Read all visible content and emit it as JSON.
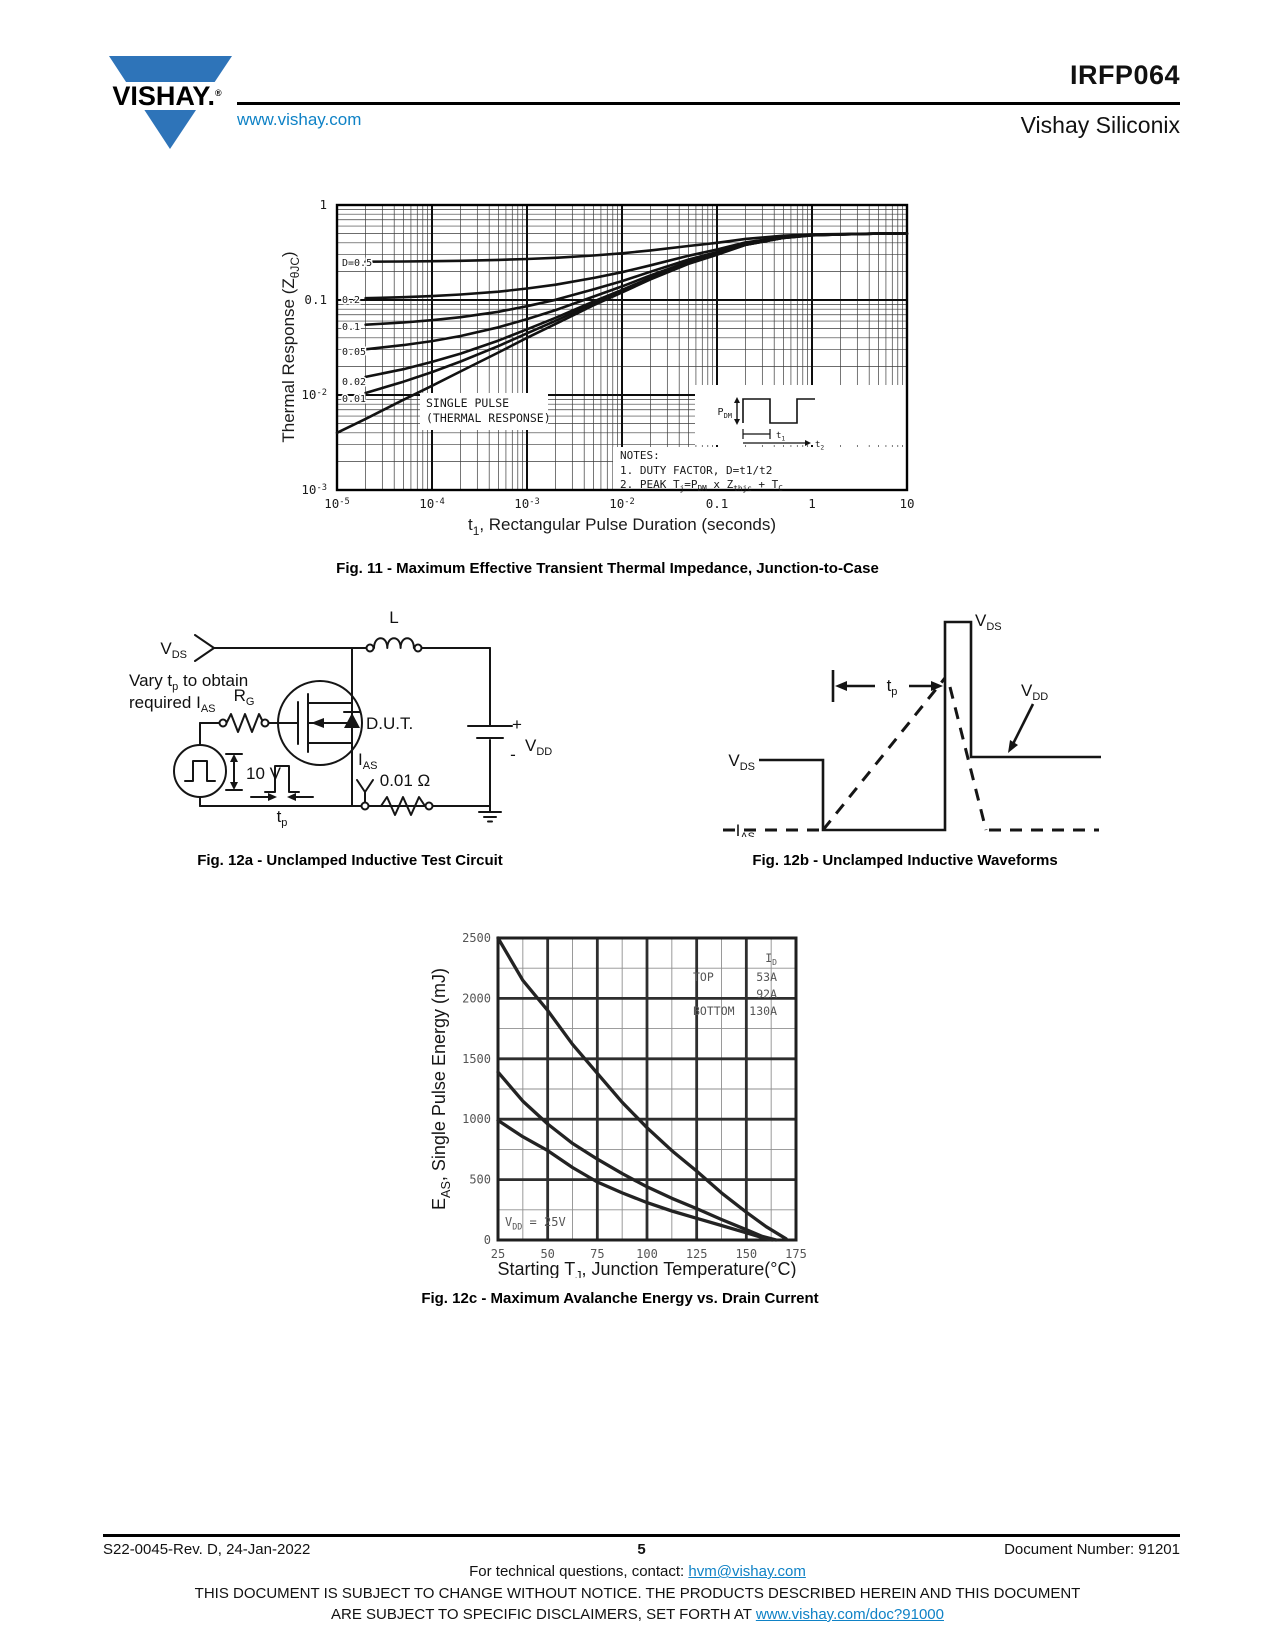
{
  "header": {
    "logo_text": "VISHAY.",
    "logo_reg": "®",
    "url": "www.vishay.com",
    "part_number": "IRFP064",
    "brand": "Vishay Siliconix",
    "logo_color": "#2e74b9",
    "link_color": "#0f82c6"
  },
  "fig11": {
    "caption": "Fig. 11 - Maximum Effective Transient Thermal Impedance, Junction-to-Case"
  },
  "fig12a": {
    "caption": "Fig. 12a - Unclamped Inductive Test Circuit",
    "note_line1": {
      "a": "Vary t",
      "b": "p",
      "c": " to obtain"
    },
    "note_line2": {
      "a": "required I",
      "b": "AS"
    },
    "labels": {
      "vds": {
        "m": "V",
        "s": "DS"
      },
      "l": "L",
      "rg": {
        "m": "R",
        "s": "G"
      },
      "dut": "D.U.T.",
      "v10": "10 V",
      "tp": {
        "m": "t",
        "s": "p"
      },
      "ias": {
        "m": "I",
        "s": "AS"
      },
      "res": "0.01 Ω",
      "plus": "+",
      "minus": "-",
      "vdd": {
        "m": "V",
        "s": "DD"
      }
    }
  },
  "fig12b": {
    "caption": "Fig. 12b - Unclamped Inductive Waveforms",
    "labels": {
      "vds_top": {
        "m": "V",
        "s": "DS"
      },
      "vds_left": {
        "m": "V",
        "s": "DS"
      },
      "vdd": {
        "m": "V",
        "s": "DD"
      },
      "tp": {
        "m": "t",
        "s": "p"
      },
      "ias": {
        "m": "I",
        "s": "AS"
      }
    }
  },
  "fig12c": {
    "caption": "Fig. 12c - Maximum Avalanche Energy vs. Drain Current"
  },
  "footer": {
    "rev": "S22-0045-Rev. D, 24-Jan-2022",
    "page": "5",
    "doc": "Document Number: 91201",
    "contact_prefix": "For technical questions, contact: ",
    "contact_link": "hvm@vishay.com",
    "disclaimer_line1": "THIS DOCUMENT IS SUBJECT TO CHANGE WITHOUT NOTICE. THE PRODUCTS DESCRIBED HEREIN AND THIS DOCUMENT",
    "disclaimer_line2_prefix": "ARE SUBJECT TO SPECIFIC DISCLAIMERS, SET FORTH AT ",
    "disclaimer_line2_link": "www.vishay.com/doc?91000"
  },
  "chart_data": [
    {
      "id": "fig11",
      "type": "line",
      "x_scale": "log",
      "y_scale": "log",
      "xlim": [
        1e-05,
        10
      ],
      "ylim": [
        0.001,
        1
      ],
      "grid": true,
      "xlabel_parts": [
        {
          "t": "t"
        },
        {
          "s": "1"
        },
        {
          "t": ", Rectangular Pulse Duration (seconds)"
        }
      ],
      "ylabel_parts": [
        {
          "t": "Thermal Response (Z"
        },
        {
          "s": "θJC"
        },
        {
          "t": ")"
        }
      ],
      "x_ticks": [
        {
          "v": 1e-05,
          "parts": [
            {
              "t": "10"
            },
            {
              "p": "-5"
            }
          ]
        },
        {
          "v": 0.0001,
          "parts": [
            {
              "t": "10"
            },
            {
              "p": "-4"
            }
          ]
        },
        {
          "v": 0.001,
          "parts": [
            {
              "t": "10"
            },
            {
              "p": "-3"
            }
          ]
        },
        {
          "v": 0.01,
          "parts": [
            {
              "t": "10"
            },
            {
              "p": "-2"
            }
          ]
        },
        {
          "v": 0.1,
          "parts": [
            {
              "t": "0.1"
            }
          ]
        },
        {
          "v": 1,
          "parts": [
            {
              "t": "1"
            }
          ]
        },
        {
          "v": 10,
          "parts": [
            {
              "t": "10"
            }
          ]
        }
      ],
      "y_ticks": [
        {
          "v": 1,
          "parts": [
            {
              "t": "1"
            }
          ]
        },
        {
          "v": 0.1,
          "parts": [
            {
              "t": "0.1"
            }
          ]
        },
        {
          "v": 0.01,
          "parts": [
            {
              "t": "10"
            },
            {
              "p": "-2"
            }
          ]
        },
        {
          "v": 0.001,
          "parts": [
            {
              "t": "10"
            },
            {
              "p": "-3"
            }
          ]
        }
      ],
      "single_pulse_box": [
        "SINGLE PULSE",
        "(THERMAL RESPONSE)"
      ],
      "notes": [
        [
          {
            "t": "NOTES:"
          }
        ],
        [
          {
            "t": "1. DUTY FACTOR, D=t1/t2"
          }
        ],
        [
          {
            "t": "2. PEAK T"
          },
          {
            "s": "j"
          },
          {
            "t": "=P"
          },
          {
            "s": "DM"
          },
          {
            "t": " x Z"
          },
          {
            "s": "thjc"
          },
          {
            "t": " + T"
          },
          {
            "s": "C"
          }
        ]
      ],
      "inset": {
        "pdm": [
          {
            "t": "P"
          },
          {
            "s": "DM"
          }
        ],
        "t1": [
          {
            "t": "t"
          },
          {
            "s": "1"
          }
        ],
        "t2": [
          {
            "t": "t"
          },
          {
            "s": "2"
          }
        ]
      },
      "series": [
        {
          "label": "D=0.5",
          "points": [
            [
              2e-05,
              0.2528
            ],
            [
              5e-05,
              0.2545
            ],
            [
              0.0001,
              0.2563
            ],
            [
              0.0002,
              0.2589
            ],
            [
              0.0005,
              0.264
            ],
            [
              0.001,
              0.27
            ],
            [
              0.002,
              0.278
            ],
            [
              0.005,
              0.294
            ],
            [
              0.01,
              0.31
            ],
            [
              0.02,
              0.3325
            ],
            [
              0.05,
              0.37
            ],
            [
              0.1,
              0.4
            ],
            [
              0.2,
              0.44
            ],
            [
              0.5,
              0.475
            ],
            [
              1,
              0.49
            ],
            [
              2,
              0.495
            ],
            [
              5,
              0.5
            ],
            [
              10,
              0.5
            ]
          ]
        },
        {
          "label": "0.2",
          "points": [
            [
              2e-05,
              0.1045
            ],
            [
              5e-05,
              0.1071
            ],
            [
              0.0001,
              0.11
            ],
            [
              0.0002,
              0.1142
            ],
            [
              0.0005,
              0.1224
            ],
            [
              0.001,
              0.132
            ],
            [
              0.002,
              0.1448
            ],
            [
              0.005,
              0.1704
            ],
            [
              0.01,
              0.196
            ],
            [
              0.02,
              0.232
            ],
            [
              0.05,
              0.292
            ],
            [
              0.1,
              0.34
            ],
            [
              0.2,
              0.404
            ],
            [
              0.5,
              0.46
            ],
            [
              1,
              0.484
            ],
            [
              2,
              0.492
            ],
            [
              5,
              0.5
            ],
            [
              10,
              0.5
            ]
          ]
        },
        {
          "label": "0.1",
          "points": [
            [
              2e-05,
              0.055
            ],
            [
              5e-05,
              0.058
            ],
            [
              0.0001,
              0.0613
            ],
            [
              0.0002,
              0.0659
            ],
            [
              0.0005,
              0.0752
            ],
            [
              0.001,
              0.086
            ],
            [
              0.002,
              0.1004
            ],
            [
              0.005,
              0.1292
            ],
            [
              0.01,
              0.158
            ],
            [
              0.02,
              0.1985
            ],
            [
              0.05,
              0.266
            ],
            [
              0.1,
              0.32
            ],
            [
              0.2,
              0.392
            ],
            [
              0.5,
              0.455
            ],
            [
              1,
              0.482
            ],
            [
              2,
              0.491
            ],
            [
              5,
              0.5
            ],
            [
              10,
              0.5
            ]
          ]
        },
        {
          "label": "0.05",
          "points": [
            [
              2e-05,
              0.0303
            ],
            [
              5e-05,
              0.0335
            ],
            [
              0.0001,
              0.0369
            ],
            [
              0.0002,
              0.0418
            ],
            [
              0.0005,
              0.0516
            ],
            [
              0.001,
              0.063
            ],
            [
              0.002,
              0.0782
            ],
            [
              0.005,
              0.1086
            ],
            [
              0.01,
              0.139
            ],
            [
              0.02,
              0.1818
            ],
            [
              0.05,
              0.253
            ],
            [
              0.1,
              0.31
            ],
            [
              0.2,
              0.386
            ],
            [
              0.5,
              0.4525
            ],
            [
              1,
              0.481
            ],
            [
              2,
              0.4905
            ],
            [
              5,
              0.5
            ],
            [
              10,
              0.5
            ]
          ]
        },
        {
          "label": "0.02",
          "points": [
            [
              2e-05,
              0.0155
            ],
            [
              5e-05,
              0.0187
            ],
            [
              0.0001,
              0.0223
            ],
            [
              0.0002,
              0.0273
            ],
            [
              0.0005,
              0.0374
            ],
            [
              0.001,
              0.0492
            ],
            [
              0.002,
              0.0649
            ],
            [
              0.005,
              0.0962
            ],
            [
              0.01,
              0.1276
            ],
            [
              0.02,
              0.1717
            ],
            [
              0.05,
              0.2452
            ],
            [
              0.1,
              0.304
            ],
            [
              0.2,
              0.3824
            ],
            [
              0.5,
              0.451
            ],
            [
              1,
              0.4804
            ],
            [
              2,
              0.4902
            ],
            [
              5,
              0.5
            ],
            [
              10,
              0.5
            ]
          ]
        },
        {
          "label": "0.01",
          "points": [
            [
              2e-05,
              0.0105
            ],
            [
              5e-05,
              0.0138
            ],
            [
              0.0001,
              0.0174
            ],
            [
              0.0002,
              0.0225
            ],
            [
              0.0005,
              0.0327
            ],
            [
              0.001,
              0.0446
            ],
            [
              0.002,
              0.0604
            ],
            [
              0.005,
              0.0921
            ],
            [
              0.01,
              0.1238
            ],
            [
              0.02,
              0.1684
            ],
            [
              0.05,
              0.2426
            ],
            [
              0.1,
              0.302
            ],
            [
              0.2,
              0.3812
            ],
            [
              0.5,
              0.4505
            ],
            [
              1,
              0.4802
            ],
            [
              2,
              0.4901
            ],
            [
              5,
              0.5
            ],
            [
              10,
              0.5
            ]
          ]
        },
        {
          "label": "single pulse",
          "points": [
            [
              1e-05,
              0.004
            ],
            [
              2e-05,
              0.0056
            ],
            [
              5e-05,
              0.0089
            ],
            [
              0.0001,
              0.0125
            ],
            [
              0.0002,
              0.0177
            ],
            [
              0.0005,
              0.028
            ],
            [
              0.001,
              0.04
            ],
            [
              0.002,
              0.056
            ],
            [
              0.005,
              0.088
            ],
            [
              0.01,
              0.12
            ],
            [
              0.02,
              0.165
            ],
            [
              0.05,
              0.24
            ],
            [
              0.1,
              0.3
            ],
            [
              0.2,
              0.38
            ],
            [
              0.5,
              0.45
            ],
            [
              1,
              0.48
            ],
            [
              2,
              0.49
            ],
            [
              5,
              0.5
            ],
            [
              10,
              0.5
            ]
          ]
        }
      ]
    },
    {
      "id": "fig12c",
      "type": "line",
      "x_scale": "linear",
      "y_scale": "linear",
      "xlim": [
        25,
        175
      ],
      "ylim": [
        0,
        2500
      ],
      "grid": true,
      "xlabel_parts": [
        {
          "t": "Starting T"
        },
        {
          "s": "J"
        },
        {
          "t": ", Junction Temperature(°C)"
        }
      ],
      "ylabel_parts": [
        {
          "t": "E"
        },
        {
          "s": "AS"
        },
        {
          "t": ", Single Pulse Energy (mJ)"
        }
      ],
      "x_ticks": [
        25,
        50,
        75,
        100,
        125,
        150,
        175
      ],
      "y_ticks": [
        0,
        500,
        1000,
        1500,
        2000,
        2500
      ],
      "legend": {
        "header_parts": [
          {
            "t": "I"
          },
          {
            "s": "D"
          }
        ],
        "rows": [
          [
            "TOP",
            "53A"
          ],
          [
            "",
            "92A"
          ],
          [
            "BOTTOM",
            "130A"
          ]
        ]
      },
      "condition_parts": [
        {
          "t": "V"
        },
        {
          "s": "DD"
        },
        {
          "t": " = 25V"
        }
      ],
      "series": [
        {
          "label": "53A",
          "points": [
            [
              25,
              2500
            ],
            [
              37.5,
              2150
            ],
            [
              50,
              1900
            ],
            [
              62.5,
              1620
            ],
            [
              75,
              1380
            ],
            [
              87.5,
              1140
            ],
            [
              100,
              930
            ],
            [
              112.5,
              740
            ],
            [
              125,
              570
            ],
            [
              137.5,
              390
            ],
            [
              150,
              230
            ],
            [
              160,
              110
            ],
            [
              170,
              10
            ]
          ]
        },
        {
          "label": "92A",
          "points": [
            [
              25,
              1390
            ],
            [
              37.5,
              1150
            ],
            [
              50,
              960
            ],
            [
              62.5,
              800
            ],
            [
              75,
              670
            ],
            [
              87.5,
              550
            ],
            [
              100,
              440
            ],
            [
              112.5,
              345
            ],
            [
              125,
              260
            ],
            [
              137.5,
              170
            ],
            [
              150,
              85
            ],
            [
              158,
              30
            ],
            [
              165,
              0
            ]
          ]
        },
        {
          "label": "130A",
          "points": [
            [
              25,
              990
            ],
            [
              37.5,
              855
            ],
            [
              50,
              740
            ],
            [
              62.5,
              600
            ],
            [
              75,
              480
            ],
            [
              87.5,
              390
            ],
            [
              100,
              310
            ],
            [
              112.5,
              240
            ],
            [
              125,
              180
            ],
            [
              137.5,
              120
            ],
            [
              150,
              60
            ],
            [
              158,
              20
            ],
            [
              163,
              0
            ]
          ]
        }
      ]
    }
  ]
}
